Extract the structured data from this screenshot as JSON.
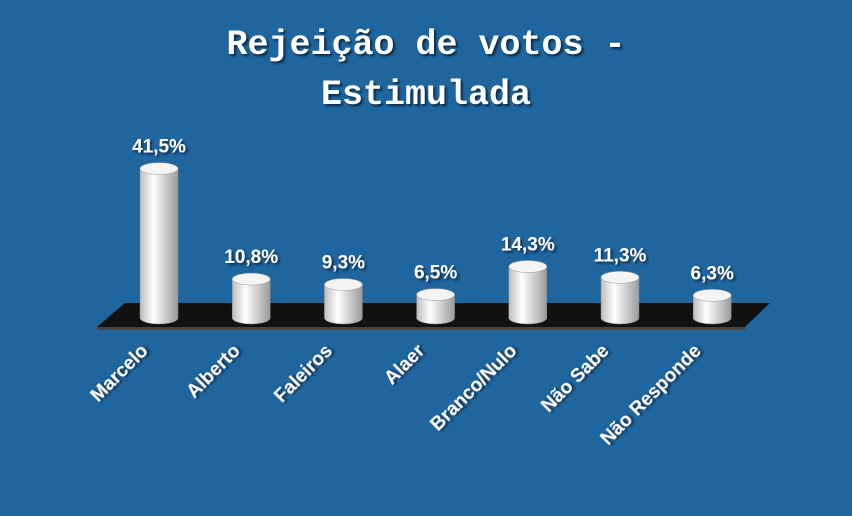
{
  "chart_data": {
    "type": "bar",
    "title": "Rejeição de votos - Estimulada",
    "categories": [
      "Marcelo",
      "Alberto",
      "Faleiros",
      "Alaer",
      "Branco/Nulo",
      "Não Sabe",
      "Não Responde"
    ],
    "values": [
      41.5,
      10.8,
      9.3,
      6.5,
      14.3,
      11.3,
      6.3
    ],
    "value_labels": [
      "41,5%",
      "10,8%",
      "9,3%",
      "6,5%",
      "14,3%",
      "11,3%",
      "6,3%"
    ],
    "color": "#ffffff"
  }
}
